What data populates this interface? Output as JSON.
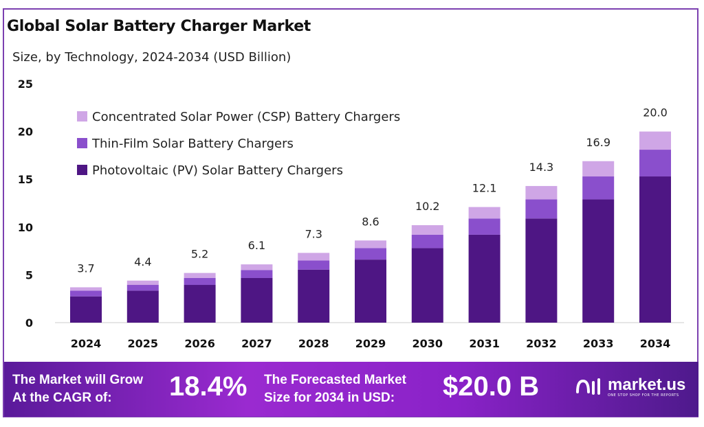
{
  "title": "Global Solar Battery Charger Market",
  "subtitle": "Size, by Technology, 2024-2034 (USD Billion)",
  "chart_data": {
    "type": "stacked-bar",
    "title": "Global Solar Battery Charger Market",
    "subtitle": "Size, by Technology, 2024-2034 (USD Billion)",
    "categories": [
      "2024",
      "2025",
      "2026",
      "2027",
      "2028",
      "2029",
      "2030",
      "2031",
      "2032",
      "2033",
      "2034"
    ],
    "series": [
      {
        "name": "Photovoltaic (PV) Solar Battery Chargers",
        "color": "#4e1684",
        "values": [
          2.75,
          3.35,
          3.95,
          4.67,
          5.55,
          6.6,
          7.8,
          9.2,
          10.9,
          12.9,
          15.3
        ]
      },
      {
        "name": "Thin-Film Solar Battery Chargers",
        "color": "#8a4fcc",
        "values": [
          0.6,
          0.6,
          0.72,
          0.84,
          0.96,
          1.2,
          1.4,
          1.7,
          2.0,
          2.4,
          2.8
        ]
      },
      {
        "name": "Concentrated Solar Power (CSP) Battery Chargers",
        "color": "#cfa6e6",
        "values": [
          0.35,
          0.45,
          0.53,
          0.59,
          0.79,
          0.8,
          1.0,
          1.2,
          1.4,
          1.6,
          1.9
        ]
      }
    ],
    "totals": [
      "3.7",
      "4.4",
      "5.2",
      "6.1",
      "7.3",
      "8.6",
      "10.2",
      "12.1",
      "14.3",
      "16.9",
      "20.0"
    ],
    "ylim": [
      0,
      25
    ],
    "yticks": [
      "0",
      "5",
      "10",
      "15",
      "20",
      "25"
    ],
    "grid": false,
    "legend_placement": "top-left"
  },
  "footer": {
    "cagr_label_1": "The Market will Grow",
    "cagr_label_2": "At the CAGR of:",
    "cagr_value": "18.4%",
    "forecast_label_1": "The Forecasted Market",
    "forecast_label_2": "Size for 2034 in USD:",
    "forecast_value": "$20.0 B",
    "logo_name": "market.us",
    "logo_tagline": "ONE STOP SHOP FOR THE REPORTS"
  }
}
